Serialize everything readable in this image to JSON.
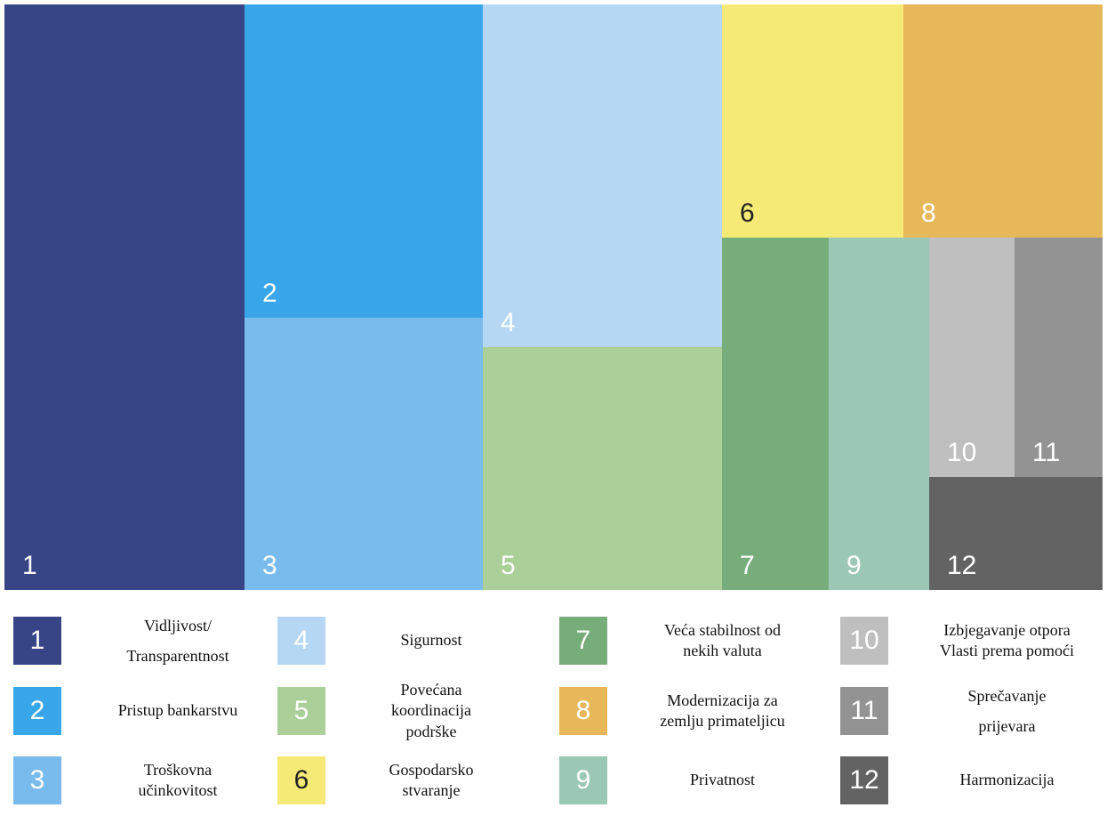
{
  "chart_data": {
    "type": "treemap",
    "items": [
      {
        "id": "1",
        "label_lines": [
          "Vidljivost/",
          "Transparentnost"
        ],
        "color": "#374586"
      },
      {
        "id": "2",
        "label_lines": [
          "Pristup bankarstvu"
        ],
        "color": "#38a6e8"
      },
      {
        "id": "3",
        "label_lines": [
          "Troškovna",
          "učinkovitost"
        ],
        "color": "#79bbec"
      },
      {
        "id": "4",
        "label_lines": [
          "Sigurnost"
        ],
        "color": "#b5d7f3"
      },
      {
        "id": "5",
        "label_lines": [
          "Povećana",
          "koordinacija",
          "podrške"
        ],
        "color": "#aacf98"
      },
      {
        "id": "6",
        "label_lines": [
          "Gospodarsko",
          "stvaranje"
        ],
        "color": "#f6ea76"
      },
      {
        "id": "7",
        "label_lines": [
          "Veća stabilnost od",
          "nekih valuta"
        ],
        "color": "#77ad7a"
      },
      {
        "id": "8",
        "label_lines": [
          "Modernizacija za",
          "zemlju primateljicu"
        ],
        "color": "#e6b85a"
      },
      {
        "id": "9",
        "label_lines": [
          "Privatnost"
        ],
        "color": "#9bc8b5"
      },
      {
        "id": "10",
        "label_lines": [
          "Izbjegavanje otpora",
          "Vlasti prema pomoći"
        ],
        "color": "#bfbfbf"
      },
      {
        "id": "11",
        "label_lines": [
          "Sprečavanje",
          "prijevara"
        ],
        "color": "#939393"
      },
      {
        "id": "12",
        "label_lines": [
          "Harmonizacija"
        ],
        "color": "#636363"
      }
    ]
  }
}
